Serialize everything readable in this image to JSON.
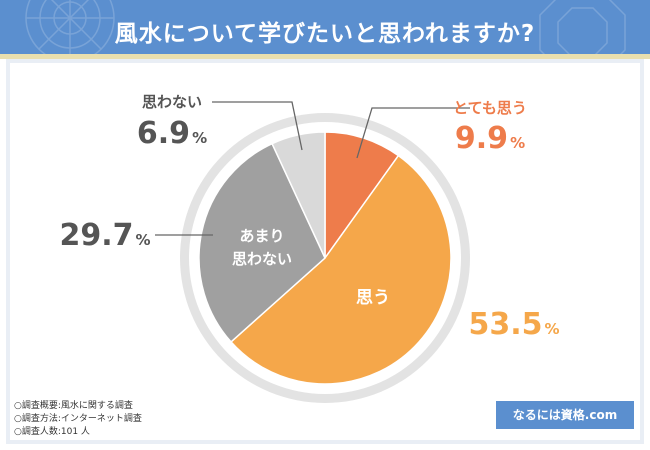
{
  "title": "風水について学びたいと思われますか?",
  "colors": {
    "header": "#5b8fcf",
    "accent_line": "#e9dfae",
    "panel": "#e9eef5",
    "very_much": "#ee7c4b",
    "yes": "#f5a74a",
    "not_really": "#a0a0a0",
    "no": "#d9d9d9",
    "label_dark": "#555555"
  },
  "chart_data": {
    "type": "pie",
    "title": "風水について学びたいと思われますか?",
    "start": "top",
    "direction": "clockwise",
    "slices": [
      {
        "label": "とても思う",
        "value": 9.9,
        "display": "9.9",
        "color": "#ee7c4b"
      },
      {
        "label": "思う",
        "value": 53.5,
        "display": "53.5",
        "color": "#f5a74a"
      },
      {
        "label": "あまり\n思わない",
        "label_lines": [
          "あまり",
          "思わない"
        ],
        "value": 29.7,
        "display": "29.7",
        "color": "#a0a0a0"
      },
      {
        "label": "思わない",
        "value": 6.9,
        "display": "6.9",
        "color": "#d9d9d9"
      }
    ],
    "unit": "%"
  },
  "footer": {
    "notes": [
      "○調査概要:風水に関する調査",
      "○調査方法:インターネット調査",
      "○調査人数:101 人"
    ],
    "brand": "なるには資格.com"
  }
}
